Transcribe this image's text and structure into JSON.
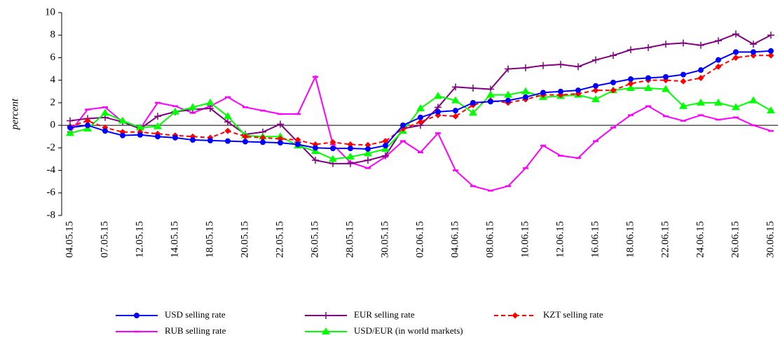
{
  "chart_data": {
    "type": "line",
    "y_label": "percent",
    "categories": [
      "04.05.15",
      null,
      "07.05.15",
      null,
      "12.05.15",
      null,
      "14.05.15",
      null,
      "18.05.15",
      null,
      "20.05.15",
      null,
      "22.05.15",
      null,
      "26.05.15",
      null,
      "28.05.15",
      null,
      "30.05.15",
      null,
      "02.06.15",
      null,
      "04.06.15",
      null,
      "08.06.15",
      null,
      "10.06.15",
      null,
      "12.06.15",
      null,
      "16.06.15",
      null,
      "18.06.15",
      null,
      "22.06.15",
      null,
      "24.06.15",
      null,
      "26.06.15",
      null,
      "30.06.15"
    ],
    "series": [
      {
        "name": "USD selling rate",
        "color": "#0000ff",
        "marker": "circle",
        "dash": false,
        "values": [
          -0.2,
          0,
          -0.5,
          -0.9,
          -0.85,
          -1.0,
          -1.1,
          -1.3,
          -1.35,
          -1.4,
          -1.45,
          -1.5,
          -1.55,
          -1.7,
          -2.0,
          -2.05,
          -2.05,
          -2.1,
          -1.8,
          0.0,
          0.7,
          1.2,
          1.3,
          2.0,
          2.1,
          2.2,
          2.5,
          2.9,
          3.0,
          3.1,
          3.5,
          3.8,
          4.1,
          4.2,
          4.3,
          4.5,
          4.9,
          5.8,
          6.5,
          6.5,
          6.6
        ]
      },
      {
        "name": "EUR selling rate",
        "color": "#800080",
        "marker": "plus",
        "dash": false,
        "values": [
          0.4,
          0.6,
          0.7,
          0.3,
          -0.3,
          0.8,
          1.2,
          1.4,
          1.5,
          0.3,
          -0.8,
          -0.6,
          0.1,
          -1.5,
          -3.1,
          -3.4,
          -3.4,
          -3.1,
          -2.7,
          -0.3,
          0.0,
          1.6,
          3.4,
          3.3,
          3.2,
          5.0,
          5.1,
          5.3,
          5.4,
          5.2,
          5.8,
          6.2,
          6.7,
          6.9,
          7.2,
          7.3,
          7.1,
          7.5,
          8.1,
          7.2,
          8.0
        ]
      },
      {
        "name": "KZT selling rate",
        "color": "#ff0000",
        "marker": "diamond",
        "dash": true,
        "values": [
          -0.1,
          0.4,
          -0.2,
          -0.6,
          -0.6,
          -0.75,
          -0.9,
          -1.0,
          -1.1,
          -0.5,
          -1.0,
          -1.1,
          -1.2,
          -1.3,
          -1.7,
          -1.5,
          -1.7,
          -1.75,
          -1.4,
          -0.3,
          0.3,
          0.9,
          0.8,
          1.8,
          2.2,
          2.0,
          2.3,
          2.7,
          2.7,
          2.8,
          3.1,
          3.1,
          3.7,
          4.0,
          4.0,
          3.9,
          4.2,
          5.2,
          6.0,
          6.2,
          6.2
        ]
      },
      {
        "name": "RUB selling rate",
        "color": "#ff00ff",
        "marker": "dash",
        "dash": false,
        "values": [
          -0.6,
          1.4,
          1.6,
          0.3,
          -0.3,
          2.0,
          1.7,
          1.1,
          1.7,
          2.5,
          1.6,
          1.3,
          1.0,
          1.0,
          4.3,
          -1.7,
          -3.3,
          -3.8,
          -2.8,
          -1.4,
          -2.4,
          -0.7,
          -4.0,
          -5.4,
          -5.8,
          -5.4,
          -3.8,
          -1.8,
          -2.7,
          -2.9,
          -1.4,
          -0.2,
          0.9,
          1.7,
          0.8,
          0.4,
          0.9,
          0.5,
          0.7,
          0.0,
          -0.5
        ]
      },
      {
        "name": "USD/EUR (in world markets)",
        "color": "#00ff00",
        "marker": "triangle",
        "dash": false,
        "values": [
          -0.7,
          -0.3,
          1.1,
          0.4,
          -0.2,
          -0.1,
          1.2,
          1.6,
          2.0,
          0.8,
          -0.9,
          -1.0,
          -1.0,
          -1.8,
          -2.3,
          -3.0,
          -2.8,
          -2.5,
          -2.1,
          -0.5,
          1.5,
          2.6,
          2.2,
          1.1,
          2.7,
          2.7,
          3.0,
          2.5,
          2.6,
          2.7,
          2.3,
          3.1,
          3.3,
          3.3,
          3.2,
          1.7,
          2.0,
          2.0,
          1.6,
          2.2,
          1.3
        ]
      }
    ],
    "ylim": [
      -8,
      10
    ],
    "yticks": [
      -8,
      -6,
      -4,
      -2,
      0,
      2,
      4,
      6,
      8,
      10
    ]
  }
}
